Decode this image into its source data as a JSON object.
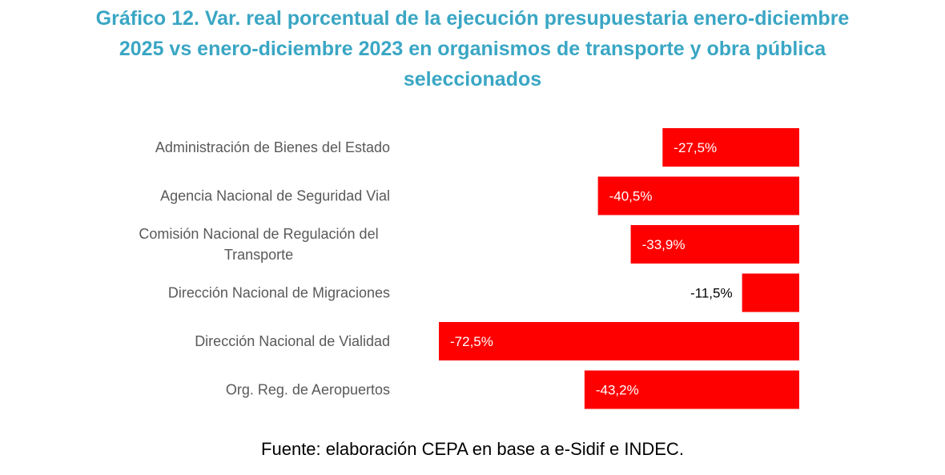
{
  "title_lines": [
    "Gráfico 12. Var. real porcentual de la ejecución presupuestaria enero-diciembre",
    "2025 vs enero-diciembre 2023 en organismos de transporte y obra pública",
    "seleccionados"
  ],
  "source": "Fuente: elaboración CEPA en base a e-Sidif e INDEC.",
  "colors": {
    "title": "#3aa6c4",
    "bar": "#ff0000",
    "category_label": "#595959"
  },
  "chart_data": {
    "type": "bar",
    "orientation": "horizontal",
    "title": "Gráfico 12. Var. real porcentual de la ejecución presupuestaria enero-diciembre 2025 vs enero-diciembre 2023 en organismos de transporte y obra pública seleccionados",
    "categories": [
      [
        "Administración de Bienes del Estado"
      ],
      [
        "Agencia Nacional de Seguridad Vial"
      ],
      [
        "Comisión Nacional de Regulación del",
        "Transporte"
      ],
      [
        "Dirección Nacional de Migraciones"
      ],
      [
        "Dirección Nacional de Vialidad"
      ],
      [
        "Org. Reg. de Aeropuertos"
      ]
    ],
    "values": [
      -27.5,
      -40.5,
      -33.9,
      -11.5,
      -72.5,
      -43.2
    ],
    "data_labels": [
      "-27,5%",
      "-40,5%",
      "-33,9%",
      "-11,5%",
      "-72,5%",
      "-43,2%"
    ],
    "unit": "%",
    "xlim": [
      -72.5,
      0
    ],
    "grid": false,
    "legend": "none"
  }
}
